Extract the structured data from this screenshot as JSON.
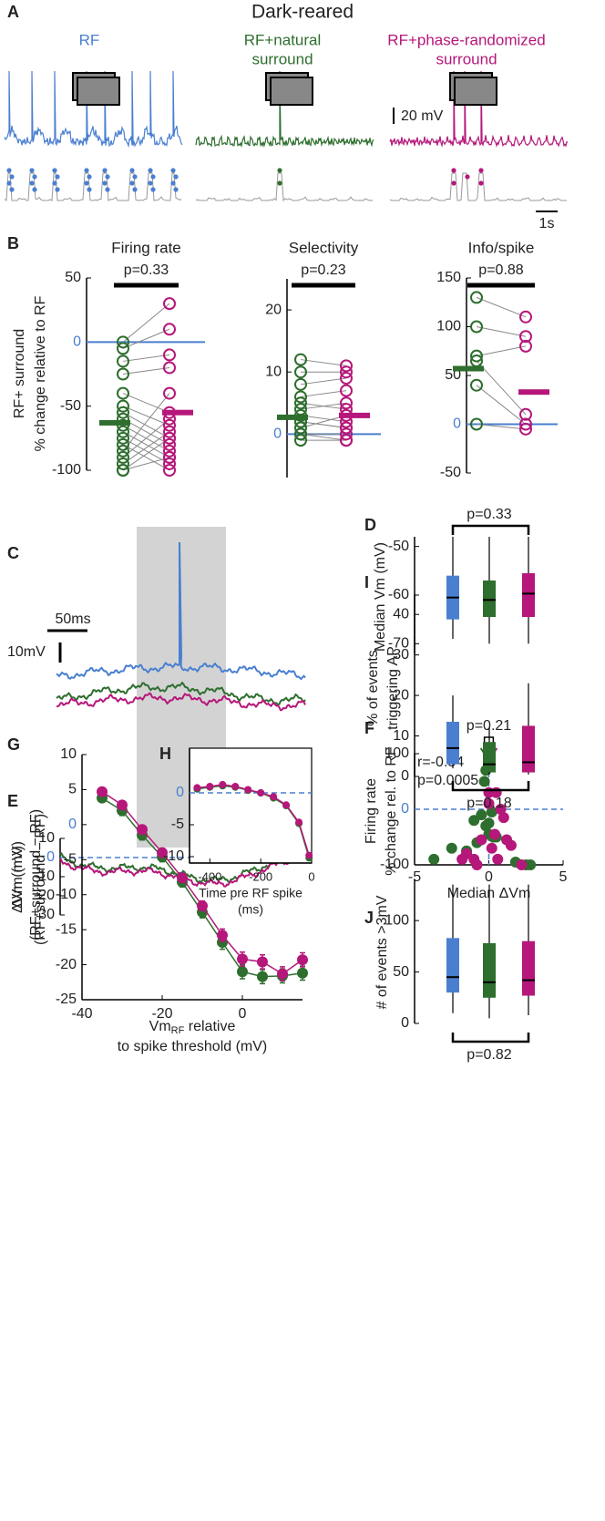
{
  "chart_data": [
    {
      "type": "traces",
      "panel": "A",
      "title": "Dark-reared",
      "conditions": [
        {
          "lines": [
            "RF"
          ],
          "color": "#4a7fd0"
        },
        {
          "lines": [
            "RF+natural",
            "surround"
          ],
          "color": "#2e6e2e"
        },
        {
          "lines": [
            "RF+phase-randomized",
            "surround"
          ],
          "color": "#b5177a"
        }
      ],
      "scale_y": "20 mV",
      "scale_x": "1s"
    },
    {
      "type": "paired-dots",
      "panel": "B",
      "title": "Firing rate",
      "ylabel": [
        "RF+ surround",
        "% change relative to RF"
      ],
      "ylim": [
        -100,
        50
      ],
      "yticks": [
        -100,
        -50,
        0,
        50
      ],
      "reference_color": "#4a7fd0",
      "annotation": "p=0.33",
      "series": [
        {
          "color": "#2e6e2e",
          "values": [
            0,
            -5,
            -15,
            -25,
            -40,
            -50,
            -55,
            -60,
            -65,
            -70,
            -75,
            -80,
            -85,
            -90,
            -95,
            -100,
            -100
          ],
          "mean": -63
        },
        {
          "color": "#b5177a",
          "values": [
            30,
            10,
            -10,
            -20,
            -55,
            -65,
            -75,
            -80,
            -85,
            -90,
            -95,
            -100,
            -40,
            -60,
            -70,
            -75,
            -90
          ],
          "mean": -55
        }
      ]
    },
    {
      "type": "paired-dots",
      "title": "Selectivity",
      "ylim": [
        -7,
        25
      ],
      "yticks": [
        0,
        10,
        20
      ],
      "reference_color": "#4a7fd0",
      "annotation": "p=0.23",
      "series": [
        {
          "color": "#2e6e2e",
          "values": [
            12,
            10,
            8,
            6,
            5,
            4,
            3,
            2,
            1,
            0,
            0,
            -1,
            2
          ],
          "mean": 2.7
        },
        {
          "color": "#b5177a",
          "values": [
            11,
            10,
            9,
            7,
            4,
            5,
            2,
            1,
            3,
            0,
            -1,
            -1,
            1
          ],
          "mean": 3
        }
      ]
    },
    {
      "type": "paired-dots",
      "title": "Info/spike",
      "ylim": [
        -50,
        150
      ],
      "yticks": [
        -50,
        0,
        50,
        100,
        150
      ],
      "reference_color": "#4a7fd0",
      "annotation": "p=0.88",
      "series": [
        {
          "color": "#2e6e2e",
          "values": [
            130,
            100,
            70,
            65,
            40,
            0
          ],
          "mean": 57
        },
        {
          "color": "#b5177a",
          "values": [
            110,
            90,
            80,
            10,
            0,
            -5
          ],
          "mean": 33
        }
      ]
    },
    {
      "type": "trace-overlay",
      "panel": "C",
      "scale_x": "50ms",
      "scale_y": "10mV",
      "colors": [
        "#4a7fd0",
        "#2e6e2e",
        "#b5177a"
      ]
    },
    {
      "type": "box",
      "panel": "D",
      "ylabel": [
        "Median Vm (mV)"
      ],
      "ylim": [
        -72,
        -48
      ],
      "yticks": [
        -50,
        -60,
        -70
      ],
      "annotation": "p=0.33",
      "bracket": "top",
      "boxes": [
        {
          "color": "#4a7fd0",
          "whislo": -69,
          "q1": -65,
          "med": -60.5,
          "q3": -56,
          "whishi": -48
        },
        {
          "color": "#2e6e2e",
          "whislo": -70,
          "q1": -64.5,
          "med": -61,
          "q3": -57,
          "whishi": -48
        },
        {
          "color": "#b5177a",
          "whislo": -70,
          "q1": -64.5,
          "med": -59.7,
          "q3": -55.5,
          "whishi": -48
        }
      ]
    },
    {
      "type": "trace-diff",
      "panel": "E",
      "ylabel": [
        "ΔVm (mV)",
        "(RF+surround − RF)"
      ],
      "ylim": [
        -30,
        10
      ],
      "yticks": [
        10,
        0,
        -10,
        -20,
        -30
      ],
      "reference_color": "#4a7fd0",
      "colors": [
        "#2e6e2e",
        "#b5177a"
      ]
    },
    {
      "type": "scatter",
      "panel": "F",
      "ylabel": [
        "Firing rate",
        "% change rel. to RF"
      ],
      "xlabel": "Median ΔVm",
      "xlim": [
        -5,
        5
      ],
      "xticks": [
        -5,
        0,
        5
      ],
      "ylim": [
        -100,
        100
      ],
      "yticks": [
        -100,
        0,
        100
      ],
      "reference_color": "#4a7fd0",
      "annotations": [
        "r=-0.54",
        "p=0.0005"
      ],
      "median_annotation": "p=0.21",
      "series": [
        {
          "color": "#2e6e2e",
          "median": -0.3,
          "x": [
            -0.2,
            -0.3,
            0.2,
            -0.5,
            -0.2,
            0.3,
            -0.8,
            0,
            0.5,
            -1.5,
            -2.5,
            -3.7,
            1.8,
            2.5,
            2.8,
            -1,
            0
          ],
          "values": [
            70,
            50,
            -5,
            -10,
            -30,
            -50,
            -60,
            -45,
            -50,
            -75,
            -70,
            -90,
            -95,
            -100,
            -100,
            -20,
            -25
          ]
        },
        {
          "color": "#b5177a",
          "median": 0.3,
          "x": [
            0,
            0.5,
            0,
            0.8,
            1,
            0.4,
            1.2,
            -0.5,
            1.5,
            -1.5,
            -1.8,
            -1,
            0.6,
            2.2,
            -0.8,
            0.2
          ],
          "values": [
            30,
            30,
            10,
            0,
            -15,
            -45,
            -55,
            -55,
            -65,
            -80,
            -90,
            -90,
            -90,
            -100,
            -100,
            -70
          ]
        }
      ]
    },
    {
      "type": "line",
      "panel": "G",
      "ylabel": [
        "ΔVm (mV)",
        "(RF+surround − RF)"
      ],
      "xlabel_main": "Vm",
      "xlabel_sub": "RF",
      "xlabel_rest": " relative",
      "xlabel_line2": "to spike threshold (mV)",
      "xlim": [
        -40,
        15
      ],
      "xticks": [
        -40,
        -20,
        0
      ],
      "ylim": [
        -25,
        10
      ],
      "yticks": [
        10,
        5,
        0,
        -5,
        -10,
        -15,
        -20,
        -25
      ],
      "reference_color": "#4a7fd0",
      "x": [
        -35,
        -30,
        -25,
        -20,
        -15,
        -10,
        -5,
        0,
        5,
        10,
        15
      ],
      "series": [
        {
          "color": "#2e6e2e",
          "values": [
            3.8,
            2,
            -1.5,
            -4.6,
            -8.2,
            -12.5,
            -16.8,
            -21,
            -21.7,
            -21.6,
            -21.2
          ],
          "errors": [
            0.6,
            0.7,
            0.7,
            0.7,
            0.7,
            0.8,
            1,
            1,
            1,
            1,
            1
          ]
        },
        {
          "color": "#b5177a",
          "values": [
            4.7,
            2.8,
            -0.7,
            -4,
            -7.6,
            -11.6,
            -15.8,
            -19.2,
            -19.6,
            -21.3,
            -19.3
          ],
          "errors": [
            0.5,
            0.6,
            0.6,
            0.6,
            0.6,
            0.7,
            0.9,
            1,
            1,
            1,
            1
          ]
        }
      ]
    },
    {
      "type": "line",
      "panel": "H",
      "xlabel_line1": "Time pre RF spike",
      "xlabel_line2": "(ms)",
      "xlim": [
        -480,
        0
      ],
      "xticks": [
        -400,
        -200,
        0
      ],
      "ylim": [
        -11,
        7
      ],
      "yticks": [
        0,
        -5,
        -10
      ],
      "reference_color": "#4a7fd0",
      "zero_line": true,
      "x": [
        -450,
        -400,
        -350,
        -300,
        -250,
        -200,
        -150,
        -100,
        -50,
        -10
      ],
      "series": [
        {
          "color": "#2e6e2e",
          "values": [
            0.6,
            0.9,
            1.1,
            0.9,
            0.4,
            0,
            -0.8,
            -2,
            -4.8,
            -10.2
          ]
        },
        {
          "color": "#b5177a",
          "values": [
            0.8,
            1,
            1.3,
            1,
            0.5,
            0,
            -0.6,
            -1.9,
            -4.6,
            -9.8
          ]
        }
      ]
    },
    {
      "type": "box",
      "panel": "I",
      "ylabel": [
        "% of events",
        "triggering AP"
      ],
      "ylim": [
        0,
        45
      ],
      "yticks": [
        0,
        10,
        20,
        30,
        40
      ],
      "annotation": "p=0.18",
      "bracket": "bottom",
      "boxes": [
        {
          "color": "#4a7fd0",
          "whislo": 2,
          "q1": 3,
          "med": 7,
          "q3": 13.5,
          "whishi": 20
        },
        {
          "color": "#2e6e2e",
          "whislo": 0.5,
          "q1": 1,
          "med": 3,
          "q3": 8.5,
          "whishi": 12
        },
        {
          "color": "#b5177a",
          "whislo": 0.5,
          "q1": 1,
          "med": 3.5,
          "q3": 12.5,
          "whishi": 23
        }
      ]
    },
    {
      "type": "box",
      "panel": "J",
      "ylabel": [
        "# of events >3mV"
      ],
      "ylim": [
        0,
        140
      ],
      "yticks": [
        0,
        50,
        100
      ],
      "annotation": "p=0.82",
      "bracket": "bottom",
      "boxes": [
        {
          "color": "#4a7fd0",
          "whislo": 10,
          "q1": 30,
          "med": 45,
          "q3": 83,
          "whishi": 135
        },
        {
          "color": "#2e6e2e",
          "whislo": 5,
          "q1": 25,
          "med": 40,
          "q3": 78,
          "whishi": 135
        },
        {
          "color": "#b5177a",
          "whislo": 8,
          "q1": 27,
          "med": 42,
          "q3": 80,
          "whishi": 135
        }
      ]
    }
  ]
}
